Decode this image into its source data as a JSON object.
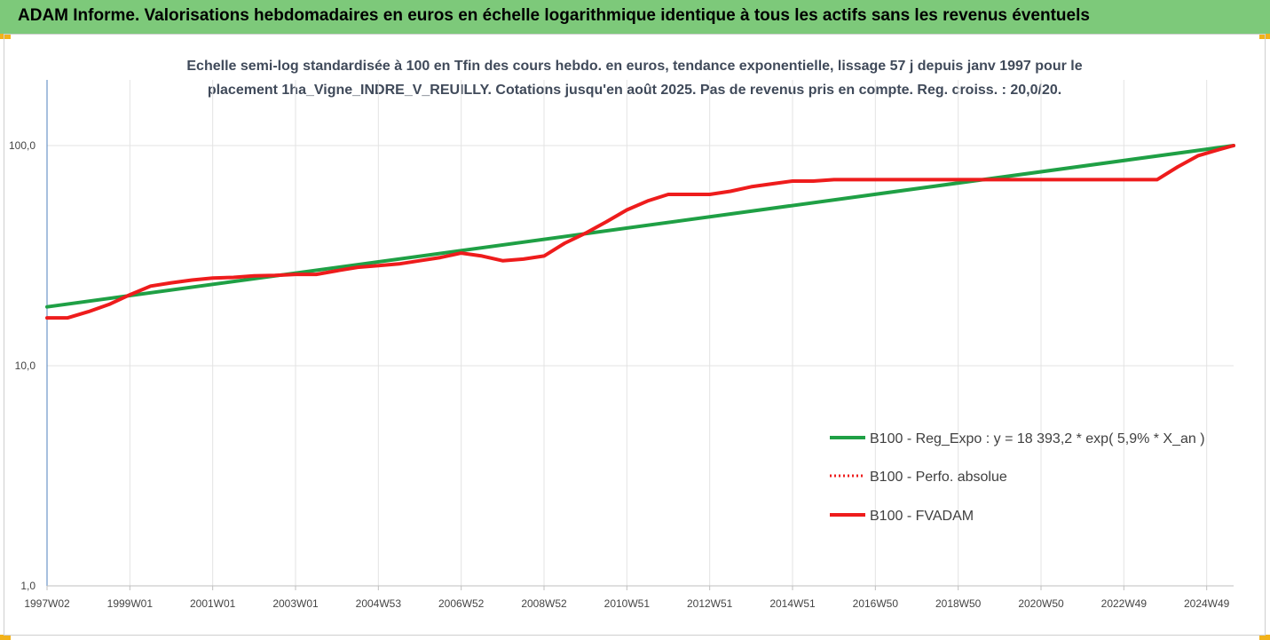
{
  "banner": {
    "title": "ADAM Informe. Valorisations hebdomadaires en euros en échelle logarithmique identique à tous les actifs sans les revenus éventuels"
  },
  "colors": {
    "banner_bg": "#7dc97a",
    "corner_accent": "#f2b21b",
    "trend": "#1fa045",
    "fvadam": "#ee1c1c",
    "perf": "#ee1c1c",
    "axis": "#4f81bd",
    "grid": "#e3e3e3"
  },
  "chart_data": {
    "type": "line",
    "subtitle_line1": "Echelle semi-log standardisée à 100 en Tfin des cours hebdo. en euros, tendance exponentielle, lissage 57 j depuis janv 1997 pour le",
    "subtitle_line2": "placement 1ha_Vigne_INDRE_V_REUILLY. Cotations jusqu'en août 2025. Pas de revenus pris en compte. Reg. croiss. : 20,0/20.",
    "yscale": "log",
    "ylim": [
      1,
      200
    ],
    "yticks": [
      {
        "value": 1,
        "label": "1,0"
      },
      {
        "value": 10,
        "label": "10,0"
      },
      {
        "value": 100,
        "label": "100,0"
      }
    ],
    "xlim": [
      1997.0,
      2025.65
    ],
    "xticks": [
      {
        "value": 1997.0,
        "label": "1997W02"
      },
      {
        "value": 1999.0,
        "label": "1999W01"
      },
      {
        "value": 2001.0,
        "label": "2001W01"
      },
      {
        "value": 2003.0,
        "label": "2003W01"
      },
      {
        "value": 2005.0,
        "label": "2004W53"
      },
      {
        "value": 2007.0,
        "label": "2006W52"
      },
      {
        "value": 2009.0,
        "label": "2008W52"
      },
      {
        "value": 2011.0,
        "label": "2010W51"
      },
      {
        "value": 2013.0,
        "label": "2012W51"
      },
      {
        "value": 2015.0,
        "label": "2014W51"
      },
      {
        "value": 2017.0,
        "label": "2016W50"
      },
      {
        "value": 2019.0,
        "label": "2018W50"
      },
      {
        "value": 2021.0,
        "label": "2020W50"
      },
      {
        "value": 2023.0,
        "label": "2022W49"
      },
      {
        "value": 2025.0,
        "label": "2024W49"
      }
    ],
    "grid": true,
    "legend_position": "right",
    "series": [
      {
        "name": "B100 - Reg_Expo : y = 18 393,2 * exp( 5,9% *  X_an )",
        "style": "solid",
        "color": "#1fa045",
        "x": [
          1997.0,
          2025.65
        ],
        "values": [
          18.5,
          100.0
        ]
      },
      {
        "name": "B100 - Perfo. absolue",
        "style": "dotted",
        "color": "#ee1c1c",
        "x": [],
        "values": []
      },
      {
        "name": "B100 - FVADAM",
        "style": "solid",
        "color": "#ee1c1c",
        "x": [
          1997.0,
          1997.5,
          1998.0,
          1998.5,
          1999.0,
          1999.5,
          2000.0,
          2000.5,
          2001.0,
          2001.5,
          2002.0,
          2002.5,
          2003.0,
          2003.5,
          2004.0,
          2004.5,
          2005.0,
          2005.5,
          2006.0,
          2006.5,
          2007.0,
          2007.5,
          2008.0,
          2008.5,
          2009.0,
          2009.5,
          2010.0,
          2010.5,
          2011.0,
          2011.5,
          2012.0,
          2012.5,
          2013.0,
          2013.5,
          2014.0,
          2014.5,
          2015.0,
          2015.5,
          2016.0,
          2017.0,
          2018.0,
          2019.0,
          2020.0,
          2021.0,
          2022.0,
          2023.0,
          2023.8,
          2024.3,
          2024.8,
          2025.3,
          2025.65
        ],
        "values": [
          16.5,
          16.5,
          17.6,
          19.0,
          21.0,
          23.0,
          23.8,
          24.5,
          25.0,
          25.2,
          25.6,
          25.7,
          26.0,
          26.0,
          27.0,
          28.0,
          28.5,
          29.0,
          30.0,
          31.0,
          32.5,
          31.5,
          30.0,
          30.5,
          31.5,
          36.0,
          40.0,
          45.0,
          51.0,
          56.0,
          60.0,
          60.0,
          60.0,
          62.0,
          65.0,
          67.0,
          69.0,
          69.0,
          70.0,
          70.0,
          70.0,
          70.0,
          70.0,
          70.0,
          70.0,
          70.0,
          70.0,
          80.0,
          90.0,
          96.0,
          100.0
        ]
      }
    ]
  }
}
